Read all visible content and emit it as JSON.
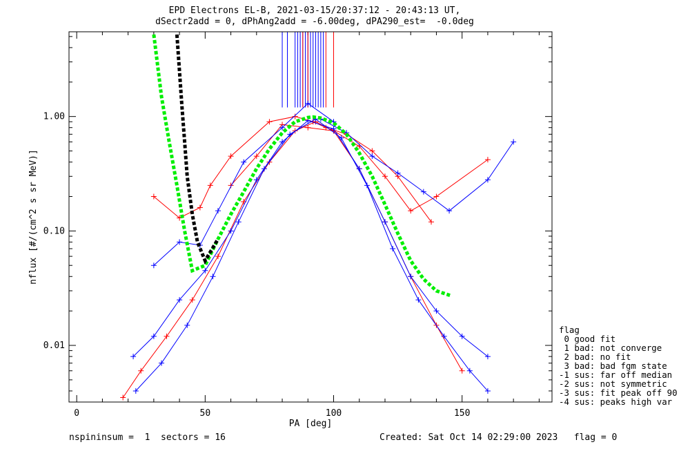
{
  "title": {
    "line1": "EPD Electrons EL-B, 2021-03-15/20:37:12 - 20:43:13 UT,",
    "line2": "dSectr2add = 0, dPhAng2add = -6.00deg, dPA290_est=  -0.0deg"
  },
  "footer": {
    "left": "nspininsum =  1  sectors = 16",
    "right": "Created: Sat Oct 14 02:29:00 2023   flag = 0"
  },
  "flag_legend": [
    "flag",
    " 0 good fit",
    " 1 bad: not converge",
    " 2 bad: no fit",
    " 3 bad: bad fgm state",
    "-1 sus: far off median",
    "-2 sus: not symmetric",
    "-3 sus: fit peak off 90",
    "-4 sus: peaks high var"
  ],
  "chart_data": {
    "type": "line",
    "xlabel": "PA [deg]",
    "ylabel": "nflux [#/(cm^2 s sr MeV)]",
    "xlim": [
      -3,
      185
    ],
    "ylim": [
      0.0032,
      5.5
    ],
    "yscale": "log",
    "xticks": [
      0,
      50,
      100,
      150
    ],
    "xtick_labels": [
      "0",
      "50",
      "100",
      "150"
    ],
    "yticks": [
      0.01,
      0.1,
      1.0
    ],
    "ytick_labels": [
      "0.01",
      "0.10",
      "1.00"
    ],
    "colors": {
      "red": "#ff0000",
      "blue": "#0000ff",
      "green": "#00ee00",
      "black": "#000000"
    },
    "series": [
      {
        "color": "red",
        "x": [
          30,
          40,
          48,
          52,
          60,
          75,
          85,
          92,
          97,
          105,
          115,
          125,
          138
        ],
        "y": [
          0.2,
          0.13,
          0.16,
          0.25,
          0.45,
          0.9,
          1.0,
          0.9,
          0.8,
          0.7,
          0.5,
          0.3,
          0.12
        ]
      },
      {
        "color": "red",
        "x": [
          18,
          25,
          35,
          45,
          55,
          65,
          75,
          85,
          93,
          100,
          110,
          120,
          130,
          140,
          150
        ],
        "y": [
          0.0035,
          0.006,
          0.012,
          0.025,
          0.06,
          0.18,
          0.4,
          0.75,
          0.9,
          0.75,
          0.35,
          0.12,
          0.04,
          0.015,
          0.006
        ]
      },
      {
        "color": "red",
        "x": [
          60,
          70,
          80,
          90,
          100,
          110,
          120,
          130,
          140,
          160
        ],
        "y": [
          0.25,
          0.45,
          0.85,
          0.8,
          0.75,
          0.55,
          0.3,
          0.15,
          0.2,
          0.42
        ]
      },
      {
        "color": "blue",
        "x": [
          22,
          30,
          40,
          50,
          60,
          70,
          80,
          90,
          100,
          110,
          120,
          130,
          140,
          150,
          160
        ],
        "y": [
          0.008,
          0.012,
          0.025,
          0.045,
          0.1,
          0.28,
          0.6,
          0.92,
          0.78,
          0.35,
          0.12,
          0.04,
          0.02,
          0.012,
          0.008
        ]
      },
      {
        "color": "blue",
        "x": [
          23,
          33,
          43,
          53,
          63,
          73,
          83,
          93,
          103,
          113,
          123,
          133,
          143,
          153,
          160
        ],
        "y": [
          0.004,
          0.007,
          0.015,
          0.04,
          0.12,
          0.35,
          0.7,
          0.95,
          0.65,
          0.25,
          0.07,
          0.025,
          0.012,
          0.006,
          0.004
        ]
      },
      {
        "color": "blue",
        "x": [
          95,
          105,
          115,
          125,
          135,
          145,
          160,
          170
        ],
        "y": [
          0.95,
          0.72,
          0.45,
          0.32,
          0.22,
          0.15,
          0.28,
          0.6
        ]
      },
      {
        "color": "blue",
        "x": [
          30,
          40,
          48,
          55,
          65,
          80,
          90,
          100
        ],
        "y": [
          0.05,
          0.08,
          0.075,
          0.15,
          0.4,
          0.8,
          1.3,
          0.9
        ]
      },
      {
        "name": "fit",
        "color": "green",
        "x": [
          30,
          33,
          36,
          39,
          42,
          45,
          50,
          55,
          60,
          65,
          70,
          75,
          80,
          85,
          90,
          92,
          95,
          100,
          105,
          110,
          115,
          120,
          125,
          130,
          135,
          140,
          146
        ],
        "y": [
          5.2,
          1.5,
          0.6,
          0.25,
          0.1,
          0.045,
          0.05,
          0.085,
          0.14,
          0.22,
          0.35,
          0.52,
          0.72,
          0.9,
          0.98,
          0.99,
          0.97,
          0.88,
          0.7,
          0.48,
          0.3,
          0.17,
          0.095,
          0.055,
          0.038,
          0.03,
          0.027
        ]
      },
      {
        "name": "fit",
        "color": "black",
        "x": [
          39,
          40,
          41,
          42,
          43,
          45,
          47,
          50,
          55
        ],
        "y": [
          5.2,
          2.5,
          1.2,
          0.6,
          0.3,
          0.14,
          0.08,
          0.055,
          0.085
        ]
      }
    ],
    "vertical_lines": {
      "blue": [
        80,
        82,
        85,
        86,
        87,
        88,
        89,
        90,
        91,
        92,
        93,
        94,
        95,
        96
      ],
      "red": [
        88,
        90,
        97,
        100
      ]
    },
    "vertical_line_ymin": 1.2,
    "legend_position": "bottom-right, outside plot"
  }
}
